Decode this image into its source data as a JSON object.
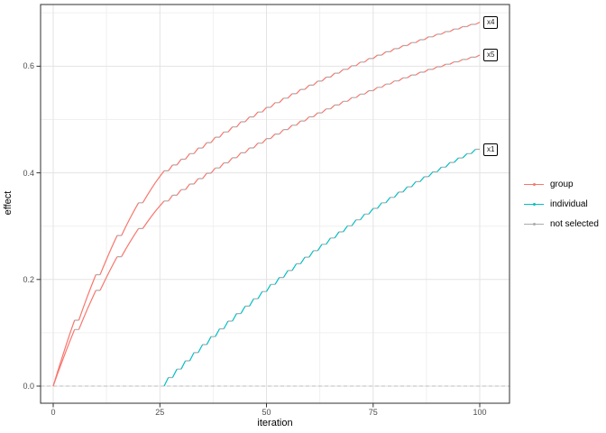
{
  "chart_data": {
    "type": "line",
    "title": "",
    "xlabel": "iteration",
    "ylabel": "effect",
    "x_ticks": [
      0,
      25,
      50,
      75,
      100
    ],
    "y_tick_labels": [
      "0.0",
      "0.2",
      "0.4",
      "0.6"
    ],
    "y_tick_values": [
      0.0,
      0.2,
      0.4,
      0.6
    ],
    "minor_x": [
      12.5,
      37.5,
      62.5,
      87.5
    ],
    "minor_y": [
      0.1,
      0.3,
      0.5,
      0.7
    ],
    "xlim": [
      -3,
      107
    ],
    "ylim": [
      -0.032,
      0.716
    ],
    "grid": true,
    "zero_line": {
      "y": 0.0,
      "style": "dashed",
      "color": "#bdbdbd"
    },
    "not_selected_color": "#ababab",
    "panel_border_color": "#2f2f2f",
    "major_grid_color": "#e3e3e3",
    "minor_grid_color": "#f0f0f0",
    "legend": {
      "position": "right",
      "items": [
        {
          "label": "group",
          "color": "#F8766D"
        },
        {
          "label": "individual",
          "color": "#00BFC4"
        },
        {
          "label": "not selected",
          "color": "#ababab"
        }
      ]
    },
    "series": [
      {
        "name": "x4",
        "end_label": "x4",
        "class": "group",
        "color": "#F8766D",
        "start": [
          0,
          0
        ],
        "events": [
          [
            1,
            0.0262
          ],
          [
            2,
            0.0517
          ],
          [
            3,
            0.0764
          ],
          [
            4,
            0.1004
          ],
          [
            5,
            0.1236
          ],
          [
            7,
            0.1461
          ],
          [
            8,
            0.1678
          ],
          [
            9,
            0.1888
          ],
          [
            10,
            0.209
          ],
          [
            12,
            0.2285
          ],
          [
            13,
            0.2472
          ],
          [
            14,
            0.2652
          ],
          [
            15,
            0.2824
          ],
          [
            17,
            0.2989
          ],
          [
            18,
            0.3146
          ],
          [
            19,
            0.3296
          ],
          [
            20,
            0.3438
          ],
          [
            22,
            0.3573
          ],
          [
            23,
            0.37
          ],
          [
            24,
            0.382
          ],
          [
            25,
            0.3932
          ],
          [
            26,
            0.4037
          ],
          [
            28,
            0.4147
          ],
          [
            30,
            0.4255
          ],
          [
            32,
            0.4361
          ],
          [
            34,
            0.4465
          ],
          [
            36,
            0.4567
          ],
          [
            38,
            0.4668
          ],
          [
            40,
            0.4766
          ],
          [
            42,
            0.4862
          ],
          [
            44,
            0.4957
          ],
          [
            46,
            0.5049
          ],
          [
            48,
            0.514
          ],
          [
            50,
            0.5229
          ],
          [
            52,
            0.5316
          ],
          [
            54,
            0.5401
          ],
          [
            56,
            0.5484
          ],
          [
            58,
            0.5565
          ],
          [
            60,
            0.5644
          ],
          [
            62,
            0.5721
          ],
          [
            64,
            0.5796
          ],
          [
            66,
            0.5869
          ],
          [
            68,
            0.5941
          ],
          [
            70,
            0.601
          ],
          [
            72,
            0.6078
          ],
          [
            74,
            0.6144
          ],
          [
            76,
            0.6208
          ],
          [
            78,
            0.627
          ],
          [
            80,
            0.633
          ],
          [
            82,
            0.6388
          ],
          [
            84,
            0.6444
          ],
          [
            86,
            0.6498
          ],
          [
            88,
            0.6551
          ],
          [
            90,
            0.6601
          ],
          [
            92,
            0.665
          ],
          [
            94,
            0.6697
          ],
          [
            96,
            0.6742
          ],
          [
            98,
            0.6785
          ],
          [
            100,
            0.6826
          ]
        ]
      },
      {
        "name": "x5",
        "end_label": "x5",
        "class": "group",
        "color": "#F8766D",
        "start": [
          0,
          0
        ],
        "events": [
          [
            1,
            0.0225
          ],
          [
            2,
            0.0444
          ],
          [
            3,
            0.0656
          ],
          [
            4,
            0.0862
          ],
          [
            5,
            0.1061
          ],
          [
            7,
            0.1254
          ],
          [
            8,
            0.1441
          ],
          [
            9,
            0.1621
          ],
          [
            10,
            0.1795
          ],
          [
            12,
            0.1962
          ],
          [
            13,
            0.2123
          ],
          [
            14,
            0.2278
          ],
          [
            15,
            0.2426
          ],
          [
            17,
            0.2568
          ],
          [
            18,
            0.2703
          ],
          [
            19,
            0.2832
          ],
          [
            20,
            0.2955
          ],
          [
            22,
            0.3071
          ],
          [
            23,
            0.3181
          ],
          [
            24,
            0.3284
          ],
          [
            25,
            0.3381
          ],
          [
            26,
            0.3472
          ],
          [
            28,
            0.358
          ],
          [
            30,
            0.3686
          ],
          [
            32,
            0.379
          ],
          [
            34,
            0.3892
          ],
          [
            36,
            0.3993
          ],
          [
            38,
            0.4091
          ],
          [
            40,
            0.4188
          ],
          [
            42,
            0.4283
          ],
          [
            44,
            0.4376
          ],
          [
            46,
            0.4467
          ],
          [
            48,
            0.4556
          ],
          [
            50,
            0.4643
          ],
          [
            52,
            0.4728
          ],
          [
            54,
            0.4812
          ],
          [
            56,
            0.4893
          ],
          [
            58,
            0.4973
          ],
          [
            60,
            0.5051
          ],
          [
            62,
            0.5126
          ],
          [
            64,
            0.52
          ],
          [
            66,
            0.5272
          ],
          [
            68,
            0.5342
          ],
          [
            70,
            0.5411
          ],
          [
            72,
            0.5477
          ],
          [
            74,
            0.5542
          ],
          [
            76,
            0.5604
          ],
          [
            78,
            0.5665
          ],
          [
            80,
            0.5724
          ],
          [
            82,
            0.5781
          ],
          [
            84,
            0.5836
          ],
          [
            86,
            0.5889
          ],
          [
            88,
            0.5941
          ],
          [
            90,
            0.599
          ],
          [
            92,
            0.6037
          ],
          [
            94,
            0.6083
          ],
          [
            96,
            0.6127
          ],
          [
            98,
            0.6169
          ],
          [
            100,
            0.6209
          ]
        ]
      },
      {
        "name": "x1",
        "end_label": "x1",
        "class": "individual",
        "color": "#00BFC4",
        "start": [
          26,
          0
        ],
        "events": [
          [
            27,
            0.016
          ],
          [
            29,
            0.0318
          ],
          [
            31,
            0.0473
          ],
          [
            33,
            0.0627
          ],
          [
            35,
            0.0778
          ],
          [
            37,
            0.0927
          ],
          [
            39,
            0.1074
          ],
          [
            41,
            0.1218
          ],
          [
            43,
            0.136
          ],
          [
            45,
            0.15
          ],
          [
            47,
            0.1638
          ],
          [
            49,
            0.1774
          ],
          [
            51,
            0.1907
          ],
          [
            53,
            0.2038
          ],
          [
            55,
            0.2167
          ],
          [
            57,
            0.2294
          ],
          [
            59,
            0.2418
          ],
          [
            61,
            0.254
          ],
          [
            63,
            0.266
          ],
          [
            65,
            0.2778
          ],
          [
            67,
            0.2894
          ],
          [
            69,
            0.3007
          ],
          [
            71,
            0.3118
          ],
          [
            73,
            0.3227
          ],
          [
            75,
            0.3334
          ],
          [
            77,
            0.3438
          ],
          [
            79,
            0.354
          ],
          [
            81,
            0.364
          ],
          [
            83,
            0.3738
          ],
          [
            85,
            0.3834
          ],
          [
            87,
            0.3927
          ],
          [
            89,
            0.4018
          ],
          [
            91,
            0.4107
          ],
          [
            93,
            0.4194
          ],
          [
            95,
            0.4279
          ],
          [
            97,
            0.4361
          ],
          [
            99,
            0.4441
          ]
        ]
      }
    ]
  }
}
